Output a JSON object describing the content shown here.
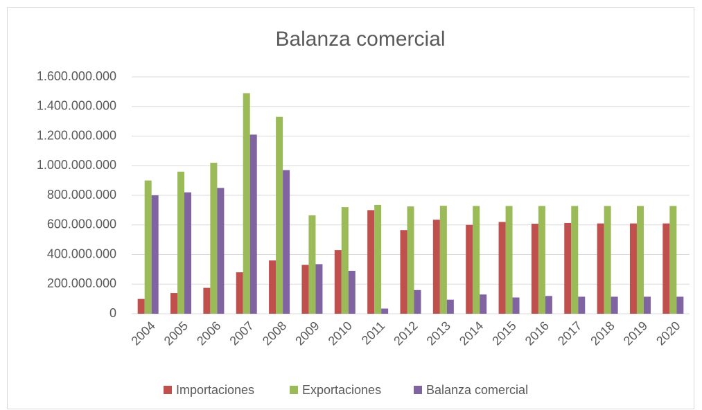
{
  "chart_data": {
    "type": "bar",
    "title": "Balanza comercial",
    "categories": [
      "2004",
      "2005",
      "2006",
      "2007",
      "2008",
      "2009",
      "2010",
      "2011",
      "2012",
      "2013",
      "2014",
      "2015",
      "2016",
      "2017",
      "2018",
      "2019",
      "2020"
    ],
    "series": [
      {
        "name": "Importaciones",
        "color": "#c0504d",
        "values": [
          100000000,
          140000000,
          175000000,
          280000000,
          360000000,
          330000000,
          430000000,
          700000000,
          565000000,
          635000000,
          600000000,
          620000000,
          608000000,
          613000000,
          610000000,
          610000000,
          610000000
        ]
      },
      {
        "name": "Exportaciones",
        "color": "#9bbb59",
        "values": [
          900000000,
          960000000,
          1020000000,
          1490000000,
          1330000000,
          665000000,
          720000000,
          735000000,
          725000000,
          729000000,
          728000000,
          728000000,
          728000000,
          728000000,
          728000000,
          728000000,
          728000000
        ]
      },
      {
        "name": "Balanza comercial",
        "color": "#8064a2",
        "values": [
          800000000,
          820000000,
          850000000,
          1210000000,
          970000000,
          335000000,
          290000000,
          35000000,
          160000000,
          95000000,
          130000000,
          110000000,
          120000000,
          115000000,
          115000000,
          115000000,
          115000000
        ]
      }
    ],
    "ylim": [
      0,
      1600000000
    ],
    "yticks": [
      0,
      {
        "value": 200000000,
        "label": "200.000.000"
      },
      {
        "value": 400000000,
        "label": "400.000.000"
      },
      {
        "value": 600000000,
        "label": "600.000.000"
      },
      {
        "value": 800000000,
        "label": "800.000.000"
      },
      {
        "value": 1000000000,
        "label": "1.000.000.000"
      },
      {
        "value": 1200000000,
        "label": "1.200.000.000"
      },
      {
        "value": 1400000000,
        "label": "1.400.000.000"
      },
      {
        "value": 1600000000,
        "label": "1.600.000.000"
      }
    ],
    "grid": true,
    "legend": "bottom"
  }
}
